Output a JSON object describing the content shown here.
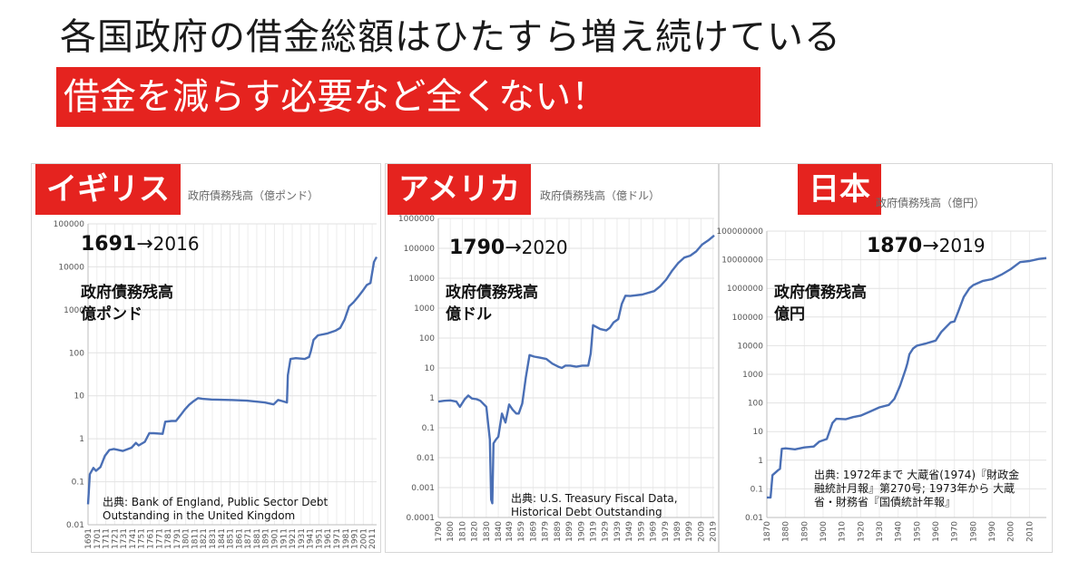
{
  "headline": "各国政府の借金総額はひたすら増え続けている",
  "subline": "借金を減らす必要など全くない！",
  "colors": {
    "accent": "#e5231f",
    "line": "#4a6fb5"
  },
  "chart_data": [
    {
      "type": "line",
      "country": "イギリス",
      "ylabel": "政府債務残高（億ポンド）",
      "period_start": "1691",
      "arrow": "→",
      "period_end": "2016",
      "desc_line1": "政府債務残高",
      "desc_line2": "億ポンド",
      "source": "出典: Bank of England, Public Sector Debt\nOutstanding in the United Kingdom",
      "yscale": "log",
      "ylim": [
        0.01,
        100000
      ],
      "yticks": [
        "0.01",
        "0.1",
        "1",
        "10",
        "100",
        "1000",
        "10000",
        "100000"
      ],
      "xlim": [
        1691,
        2016
      ],
      "xticks": [
        "1691",
        "1701",
        "1711",
        "1721",
        "1731",
        "1741",
        "1751",
        "1761",
        "1771",
        "1781",
        "1791",
        "1801",
        "1811",
        "1821",
        "1831",
        "1841",
        "1851",
        "1861",
        "1871",
        "1881",
        "1891",
        "1901",
        "1911",
        "1921",
        "1931",
        "1941",
        "1951",
        "1961",
        "1971",
        "1981",
        "1991",
        "2001",
        "2011"
      ],
      "series": [
        {
          "x": [
            1691,
            1693,
            1697,
            1700,
            1705,
            1710,
            1715,
            1720,
            1730,
            1740,
            1745,
            1748,
            1755,
            1760,
            1765,
            1775,
            1778,
            1785,
            1790,
            1795,
            1800,
            1805,
            1810,
            1815,
            1820,
            1830,
            1850,
            1870,
            1890,
            1900,
            1905,
            1910,
            1915,
            1916,
            1919,
            1925,
            1935,
            1940,
            1942,
            1945,
            1950,
            1960,
            1970,
            1975,
            1980,
            1985,
            1990,
            1995,
            2000,
            2005,
            2009,
            2013,
            2016
          ],
          "y": [
            0.03,
            0.15,
            0.21,
            0.18,
            0.22,
            0.4,
            0.55,
            0.58,
            0.52,
            0.62,
            0.8,
            0.7,
            0.85,
            1.35,
            1.35,
            1.3,
            2.5,
            2.6,
            2.6,
            3.5,
            4.8,
            6.2,
            7.5,
            8.8,
            8.5,
            8.2,
            8.0,
            7.7,
            7.0,
            6.3,
            8.0,
            7.5,
            7.0,
            30,
            72,
            75,
            72,
            80,
            110,
            200,
            255,
            280,
            330,
            380,
            600,
            1200,
            1500,
            2000,
            2700,
            3800,
            4200,
            13000,
            17000
          ]
        }
      ]
    },
    {
      "type": "line",
      "country": "アメリカ",
      "ylabel": "政府債務残高（億ドル）",
      "period_start": "1790",
      "arrow": "→",
      "period_end": "2020",
      "desc_line1": "政府債務残高",
      "desc_line2": "億ドル",
      "source": "出典: U.S. Treasury Fiscal Data,\nHistorical Debt Outstanding",
      "yscale": "log",
      "ylim": [
        0.0001,
        1000000
      ],
      "yticks": [
        "0.0001",
        "0.001",
        "0.01",
        "0.1",
        "1",
        "10",
        "100",
        "1000",
        "10000",
        "100000",
        "1000000"
      ],
      "xlim": [
        1790,
        2020
      ],
      "xticks": [
        "1790",
        "1800",
        "1810",
        "1820",
        "1830",
        "1840",
        "1849",
        "1859",
        "1869",
        "1879",
        "1889",
        "1899",
        "1909",
        "1919",
        "1929",
        "1939",
        "1949",
        "1959",
        "1969",
        "1979",
        "1989",
        "1999",
        "2009",
        "2019"
      ],
      "series": [
        {
          "x": [
            1790,
            1795,
            1800,
            1805,
            1808,
            1812,
            1815,
            1818,
            1822,
            1825,
            1830,
            1833,
            1834,
            1835,
            1836,
            1838,
            1840,
            1843,
            1846,
            1849,
            1852,
            1855,
            1857,
            1860,
            1863,
            1866,
            1870,
            1875,
            1880,
            1885,
            1890,
            1893,
            1896,
            1900,
            1905,
            1910,
            1915,
            1917,
            1919,
            1925,
            1930,
            1933,
            1936,
            1940,
            1943,
            1946,
            1950,
            1960,
            1970,
            1975,
            1980,
            1985,
            1990,
            1995,
            2000,
            2005,
            2010,
            2015,
            2020
          ],
          "y": [
            0.75,
            0.8,
            0.82,
            0.75,
            0.5,
            0.9,
            1.2,
            0.95,
            0.9,
            0.8,
            0.5,
            0.04,
            0.0004,
            0.0003,
            0.03,
            0.04,
            0.05,
            0.3,
            0.15,
            0.6,
            0.4,
            0.3,
            0.3,
            0.65,
            5,
            27,
            24,
            22,
            20,
            14,
            11,
            10,
            12,
            12,
            11,
            12,
            12,
            30,
            270,
            200,
            180,
            220,
            330,
            430,
            1400,
            2600,
            2550,
            2850,
            3700,
            5400,
            9000,
            18000,
            32000,
            49000,
            57000,
            79000,
            135000,
            183000,
            270000
          ]
        }
      ]
    },
    {
      "type": "line",
      "country": "日本",
      "ylabel": "政府債務残高（億円）",
      "period_start": "1870",
      "arrow": "→",
      "period_end": "2019",
      "desc_line1": "政府債務残高",
      "desc_line2": "億円",
      "source": "出典: 1972年まで 大蔵省(1974)『財政金\n融統計月報』第270号; 1973年から 大蔵\n省・財務省『国債統計年報』",
      "yscale": "log",
      "ylim": [
        0.01,
        100000000
      ],
      "yticks": [
        "0.01",
        "0.1",
        "1",
        "10",
        "100",
        "1000",
        "10000",
        "100000",
        "1000000",
        "10000000",
        "100000000"
      ],
      "xlim": [
        1870,
        2019
      ],
      "xticks": [
        "1870",
        "1880",
        "1890",
        "1900",
        "1910",
        "1920",
        "1930",
        "1940",
        "1950",
        "1960",
        "1970",
        "1980",
        "1990",
        "2000",
        "2010"
      ],
      "series": [
        {
          "x": [
            1870,
            1872,
            1873,
            1876,
            1877,
            1878,
            1880,
            1885,
            1890,
            1895,
            1898,
            1902,
            1905,
            1907,
            1912,
            1916,
            1920,
            1925,
            1930,
            1935,
            1938,
            1941,
            1944,
            1945,
            1946,
            1948,
            1950,
            1955,
            1960,
            1963,
            1966,
            1968,
            1970,
            1972,
            1975,
            1978,
            1980,
            1985,
            1990,
            1995,
            2000,
            2005,
            2010,
            2015,
            2019
          ],
          "y": [
            0.05,
            0.05,
            0.3,
            0.45,
            0.5,
            2.5,
            2.6,
            2.4,
            2.8,
            3.0,
            4.5,
            5.5,
            20,
            28,
            27,
            32,
            36,
            50,
            70,
            85,
            140,
            400,
            1500,
            2500,
            5000,
            8000,
            10000,
            12000,
            15000,
            30000,
            48000,
            65000,
            70000,
            150000,
            500000,
            1000000,
            1300000,
            1800000,
            2100000,
            3000000,
            4700000,
            8300000,
            9000000,
            10700000,
            11500000
          ]
        }
      ]
    }
  ]
}
